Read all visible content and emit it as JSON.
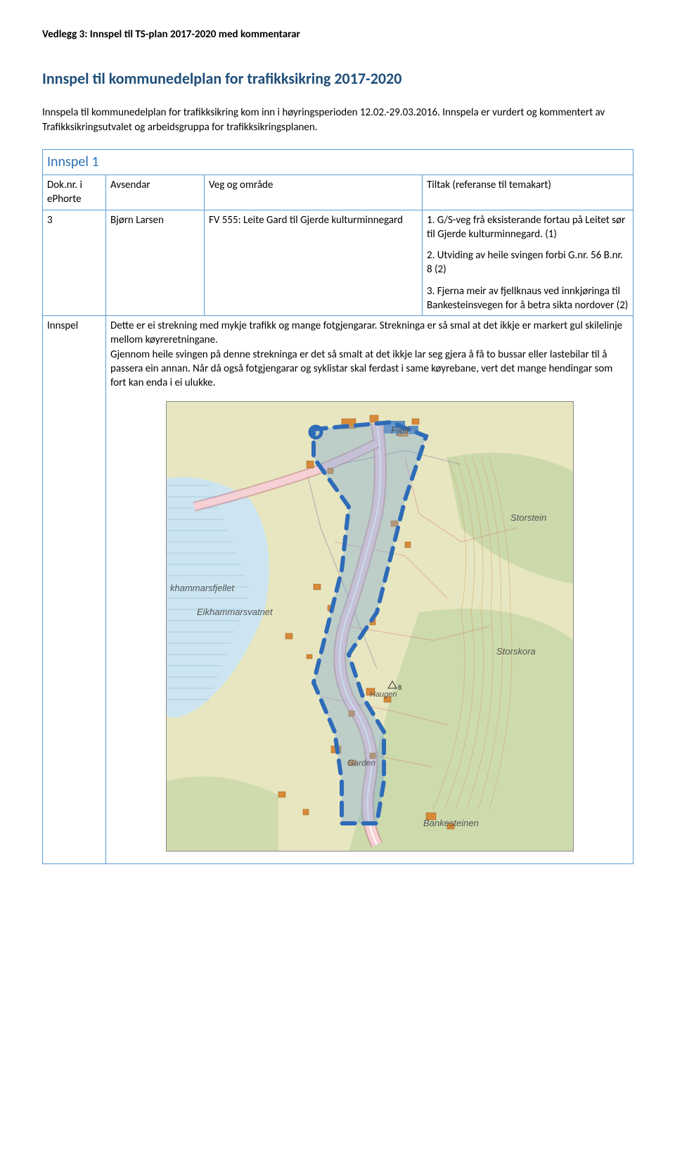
{
  "attachment_header": "Vedlegg 3: Innspel til TS-plan 2017-2020 med kommentarar",
  "main_title": "Innspel til kommunedelplan for trafikksikring 2017-2020",
  "intro": "Innspela til kommunedelplan for trafikksikring kom inn i høyringsperioden 12.02.-29.03.2016. Innspela er vurdert og kommentert av Trafikksikringsutvalet og arbeidsgruppa for trafikksikringsplanen.",
  "section_label": "Innspel 1",
  "table_headers": {
    "col0": "Dok.nr. i ePhorte",
    "col1": "Avsendar",
    "col2": "Veg og område",
    "col3": "Tiltak (referanse til temakart)"
  },
  "row1": {
    "doknr": "3",
    "avsendar": "Bjørn Larsen",
    "veg": "FV 555: Leite Gard til Gjerde kulturminnegard",
    "tiltak1": "1. G/S-veg frå eksisterande fortau på Leitet sør til Gjerde kulturminnegard. (1)",
    "tiltak2": "2. Utviding av heile svingen forbi G.nr. 56 B.nr. 8 (2)",
    "tiltak3": "3. Fjerna meir av fjellknaus ved innkjøringa til Bankesteinsvegen for å betra sikta nordover (2)"
  },
  "innspel_label": "Innspel",
  "innspel_text": "Dette er ei strekning med mykje trafikk og mange fotgjengarar. Strekninga er så smal at det ikkje er markert gul skilelinje mellom køyreretningane.\nGjennom heile svingen på denne strekninga er det så smalt at det ikkje lar seg gjera å få to bussar eller lastebilar til å passera ein annan. Når då også fotgjengarar og syklistar skal ferdast i same køyrebane, vert det mange hendingar som fort kan enda i ei ulukke.",
  "map": {
    "background_land": "#e8e6c0",
    "background_forest": "#c8d7a8",
    "water": "#cce5f0",
    "road_major_fill": "#f5d0d5",
    "road_major_stroke": "#c07080",
    "road_minor": "#aaaaaa",
    "building": "#d68a3a",
    "building_blue": "#5a8cc0",
    "contour": "#d0a060",
    "polyline_dash": "#2e6bb8",
    "polyline_fill": "#7da8d4",
    "polyline_fill_opacity": 0.4,
    "dash_width": 6,
    "dash_pattern": "18 12",
    "labels": {
      "fjell": "Fjell",
      "khamm": "khammarsfjellet",
      "eikh": "Eikhammarsvatnet",
      "stor1": "Storstein",
      "stor2": "Storskora",
      "garden": "Garden",
      "haugen": "Haugen",
      "banke": "Bankesteinen"
    },
    "label_font": "italic 12px Arial",
    "height_mark": "B"
  }
}
